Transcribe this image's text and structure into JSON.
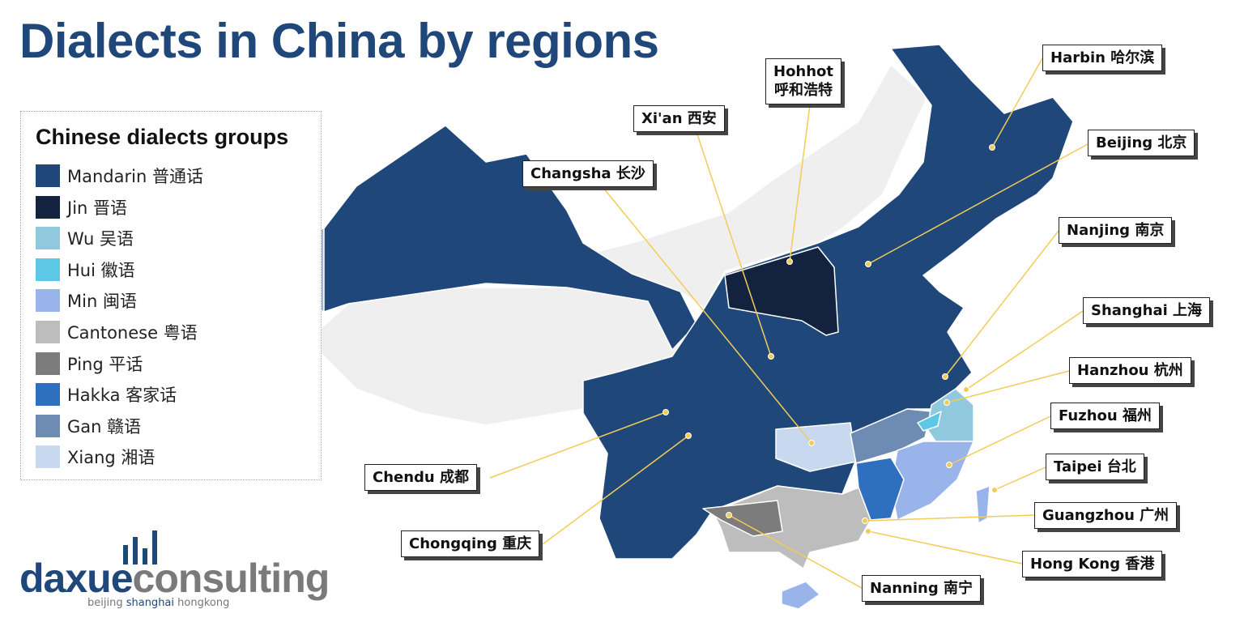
{
  "title": "Dialects in China by regions",
  "legend": {
    "title": "Chinese dialects groups",
    "items": [
      {
        "label": "Mandarin 普通话",
        "color": "#1f477a"
      },
      {
        "label": "Jin 晋语",
        "color": "#13233f"
      },
      {
        "label": "Wu 吴语",
        "color": "#90c8de"
      },
      {
        "label": "Hui 徽语",
        "color": "#5cc8e6"
      },
      {
        "label": "Min 闽语",
        "color": "#99b4ea"
      },
      {
        "label": "Cantonese 粤语",
        "color": "#bdbdbd"
      },
      {
        "label": "Ping 平话",
        "color": "#7c7c7c"
      },
      {
        "label": "Hakka 客家话",
        "color": "#2f6fbf"
      },
      {
        "label": "Gan 赣语",
        "color": "#6d8bb3"
      },
      {
        "label": "Xiang  湘语",
        "color": "#c8d8ef"
      }
    ]
  },
  "cities": [
    {
      "label": "Hohhot\n呼和浩特"
    },
    {
      "label": "Xi'an  西安"
    },
    {
      "label": "Changsha 长沙"
    },
    {
      "label": "Harbin 哈尔滨"
    },
    {
      "label": "Beijing 北京"
    },
    {
      "label": "Nanjing 南京"
    },
    {
      "label": "Shanghai 上海"
    },
    {
      "label": "Hanzhou 杭州"
    },
    {
      "label": "Fuzhou 福州"
    },
    {
      "label": "Taipei 台北"
    },
    {
      "label": "Guangzhou 广州"
    },
    {
      "label": "Hong Kong 香港"
    },
    {
      "label": "Nanning 南宁"
    },
    {
      "label": "Chendu 成都"
    },
    {
      "label": "Chongqing 重庆"
    }
  ],
  "logo": {
    "brand_a": "daxue",
    "brand_b": "consulting",
    "tagline_a": "beijing ",
    "tagline_b": "shanghai",
    "tagline_c": " hongkong"
  }
}
